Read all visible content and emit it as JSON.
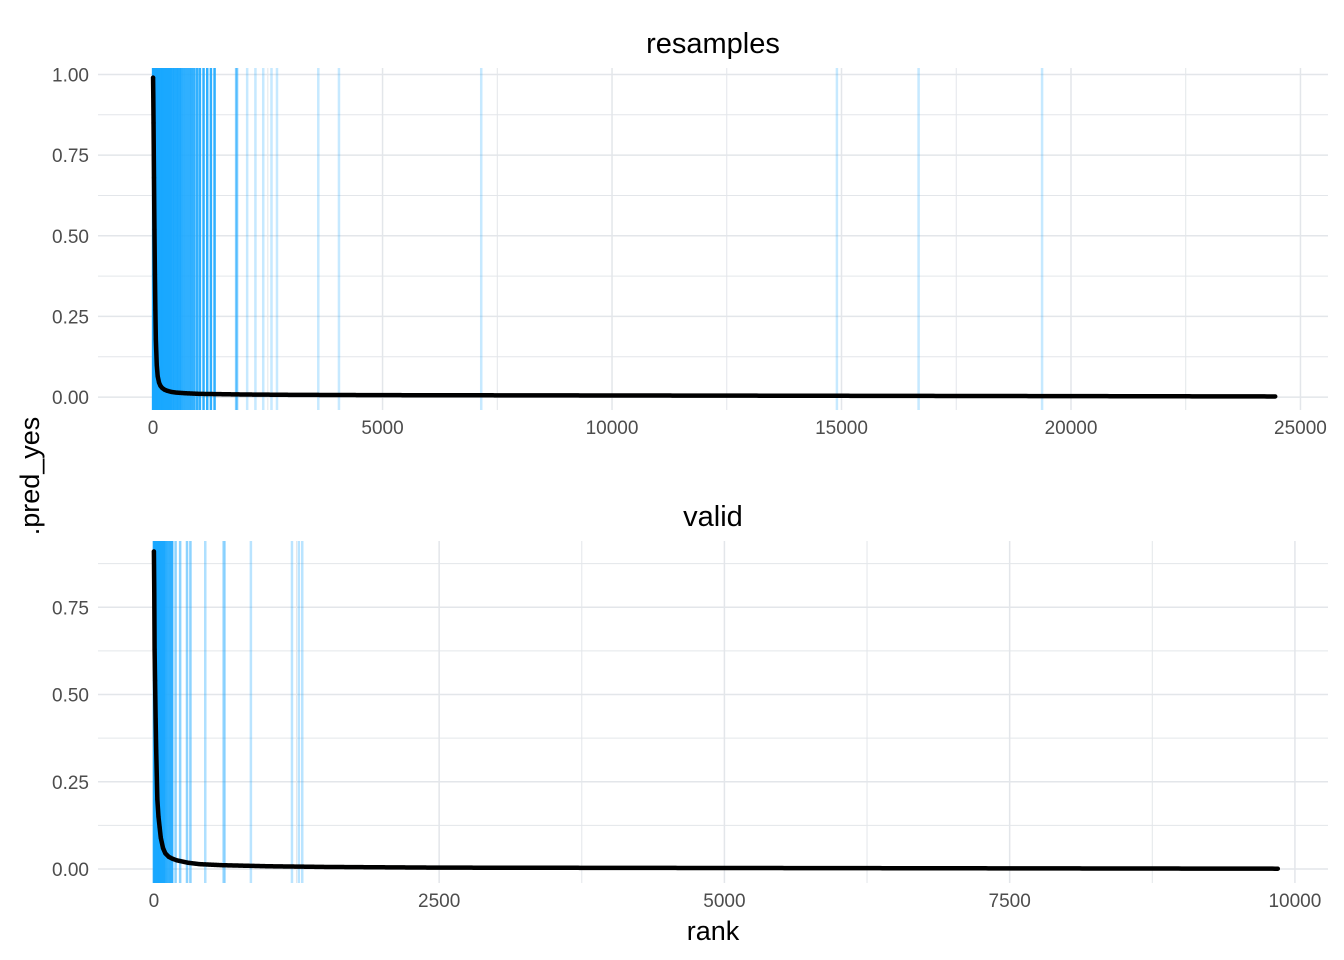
{
  "chart_data": {
    "type": "scatter",
    "xlabel": "rank",
    "ylabel": ".pred_yes",
    "grid": true,
    "legend": "none",
    "colors": {
      "points": "#000000",
      "event_lines": "#1aa7ff",
      "grid": "#e3e6ea",
      "tick_text": "#4d4d4d"
    },
    "panels": [
      {
        "title": "resamples",
        "xlim": [
          -1200,
          25600
        ],
        "ylim": [
          -0.04,
          1.02
        ],
        "x_ticks": [
          0,
          5000,
          10000,
          15000,
          20000,
          25000
        ],
        "x_tick_labels": [
          "0",
          "5000",
          "10000",
          "15000",
          "20000",
          "25000"
        ],
        "y_ticks": [
          0,
          0.25,
          0.5,
          0.75,
          1.0
        ],
        "y_tick_labels": [
          "0.00",
          "0.25",
          "0.50",
          "0.75",
          "1.00"
        ],
        "curve": {
          "x": [
            0,
            5,
            10,
            20,
            30,
            40,
            50,
            60,
            80,
            100,
            130,
            160,
            200,
            250,
            300,
            400,
            500,
            700,
            1000,
            1500,
            2000,
            3000,
            5000,
            10000,
            15000,
            20000,
            24450
          ],
          "y": [
            0.99,
            0.93,
            0.85,
            0.68,
            0.52,
            0.38,
            0.27,
            0.18,
            0.1,
            0.065,
            0.045,
            0.035,
            0.028,
            0.023,
            0.02,
            0.016,
            0.014,
            0.012,
            0.01,
            0.009,
            0.008,
            0.007,
            0.006,
            0.005,
            0.004,
            0.003,
            0.002
          ]
        },
        "event_ranks": [
          0,
          5,
          10,
          15,
          20,
          25,
          30,
          35,
          40,
          45,
          50,
          55,
          60,
          65,
          70,
          75,
          80,
          85,
          90,
          95,
          100,
          110,
          120,
          130,
          140,
          150,
          160,
          175,
          190,
          205,
          220,
          240,
          260,
          280,
          300,
          320,
          340,
          360,
          380,
          400,
          430,
          460,
          490,
          520,
          550,
          580,
          610,
          650,
          700,
          750,
          800,
          850,
          900,
          960,
          1020,
          1100,
          1180,
          1260,
          1340,
          1810,
          1830,
          2050,
          2230,
          2400,
          2580,
          2700,
          3600,
          4050,
          7150,
          14900,
          16680,
          19370
        ],
        "event_line_opacity": [
          0.9,
          0.9,
          0.9,
          0.9,
          0.9,
          0.9,
          0.9,
          0.9,
          0.9,
          0.9,
          0.9,
          0.9,
          0.9,
          0.9,
          0.9,
          0.9,
          0.9,
          0.9,
          0.9,
          0.9,
          0.9,
          0.9,
          0.9,
          0.9,
          0.9,
          0.9,
          0.9,
          0.9,
          0.9,
          0.9,
          0.9,
          0.9,
          0.9,
          0.9,
          0.9,
          0.9,
          0.9,
          0.9,
          0.9,
          0.9,
          0.9,
          0.9,
          0.9,
          0.9,
          0.9,
          0.9,
          0.9,
          0.9,
          0.9,
          0.9,
          0.9,
          0.9,
          0.9,
          0.9,
          0.9,
          0.9,
          0.9,
          0.9,
          0.9,
          0.5,
          0.5,
          0.25,
          0.25,
          0.25,
          0.25,
          0.25,
          0.25,
          0.25,
          0.25,
          0.25,
          0.25,
          0.25
        ]
      },
      {
        "title": "valid",
        "xlim": [
          -490,
          10290
        ],
        "ylim": [
          -0.04,
          0.94
        ],
        "x_ticks": [
          0,
          2500,
          5000,
          7500,
          10000
        ],
        "x_tick_labels": [
          "0",
          "2500",
          "5000",
          "7500",
          "10000"
        ],
        "y_ticks": [
          0,
          0.25,
          0.5,
          0.75
        ],
        "y_tick_labels": [
          "0.00",
          "0.25",
          "0.50",
          "0.75"
        ],
        "curve": {
          "x": [
            0,
            3,
            6,
            10,
            15,
            20,
            25,
            30,
            40,
            50,
            60,
            80,
            100,
            130,
            160,
            200,
            300,
            400,
            600,
            1000,
            1500,
            2500,
            5000,
            7500,
            9850
          ],
          "y": [
            0.91,
            0.8,
            0.63,
            0.54,
            0.43,
            0.34,
            0.27,
            0.2,
            0.15,
            0.12,
            0.09,
            0.06,
            0.045,
            0.035,
            0.03,
            0.025,
            0.018,
            0.014,
            0.011,
            0.008,
            0.006,
            0.004,
            0.003,
            0.002,
            0.001
          ]
        },
        "event_ranks": [
          0,
          5,
          10,
          15,
          20,
          25,
          30,
          35,
          40,
          45,
          50,
          55,
          60,
          70,
          80,
          90,
          100,
          120,
          140,
          160,
          190,
          230,
          290,
          320,
          450,
          610,
          620,
          850,
          1210,
          1270,
          1300
        ],
        "event_line_opacity": [
          0.9,
          0.9,
          0.9,
          0.9,
          0.9,
          0.9,
          0.9,
          0.9,
          0.9,
          0.9,
          0.9,
          0.9,
          0.9,
          0.9,
          0.9,
          0.9,
          0.9,
          0.9,
          0.9,
          0.9,
          0.5,
          0.5,
          0.5,
          0.5,
          0.35,
          0.35,
          0.35,
          0.3,
          0.3,
          0.3,
          0.3
        ]
      }
    ]
  }
}
